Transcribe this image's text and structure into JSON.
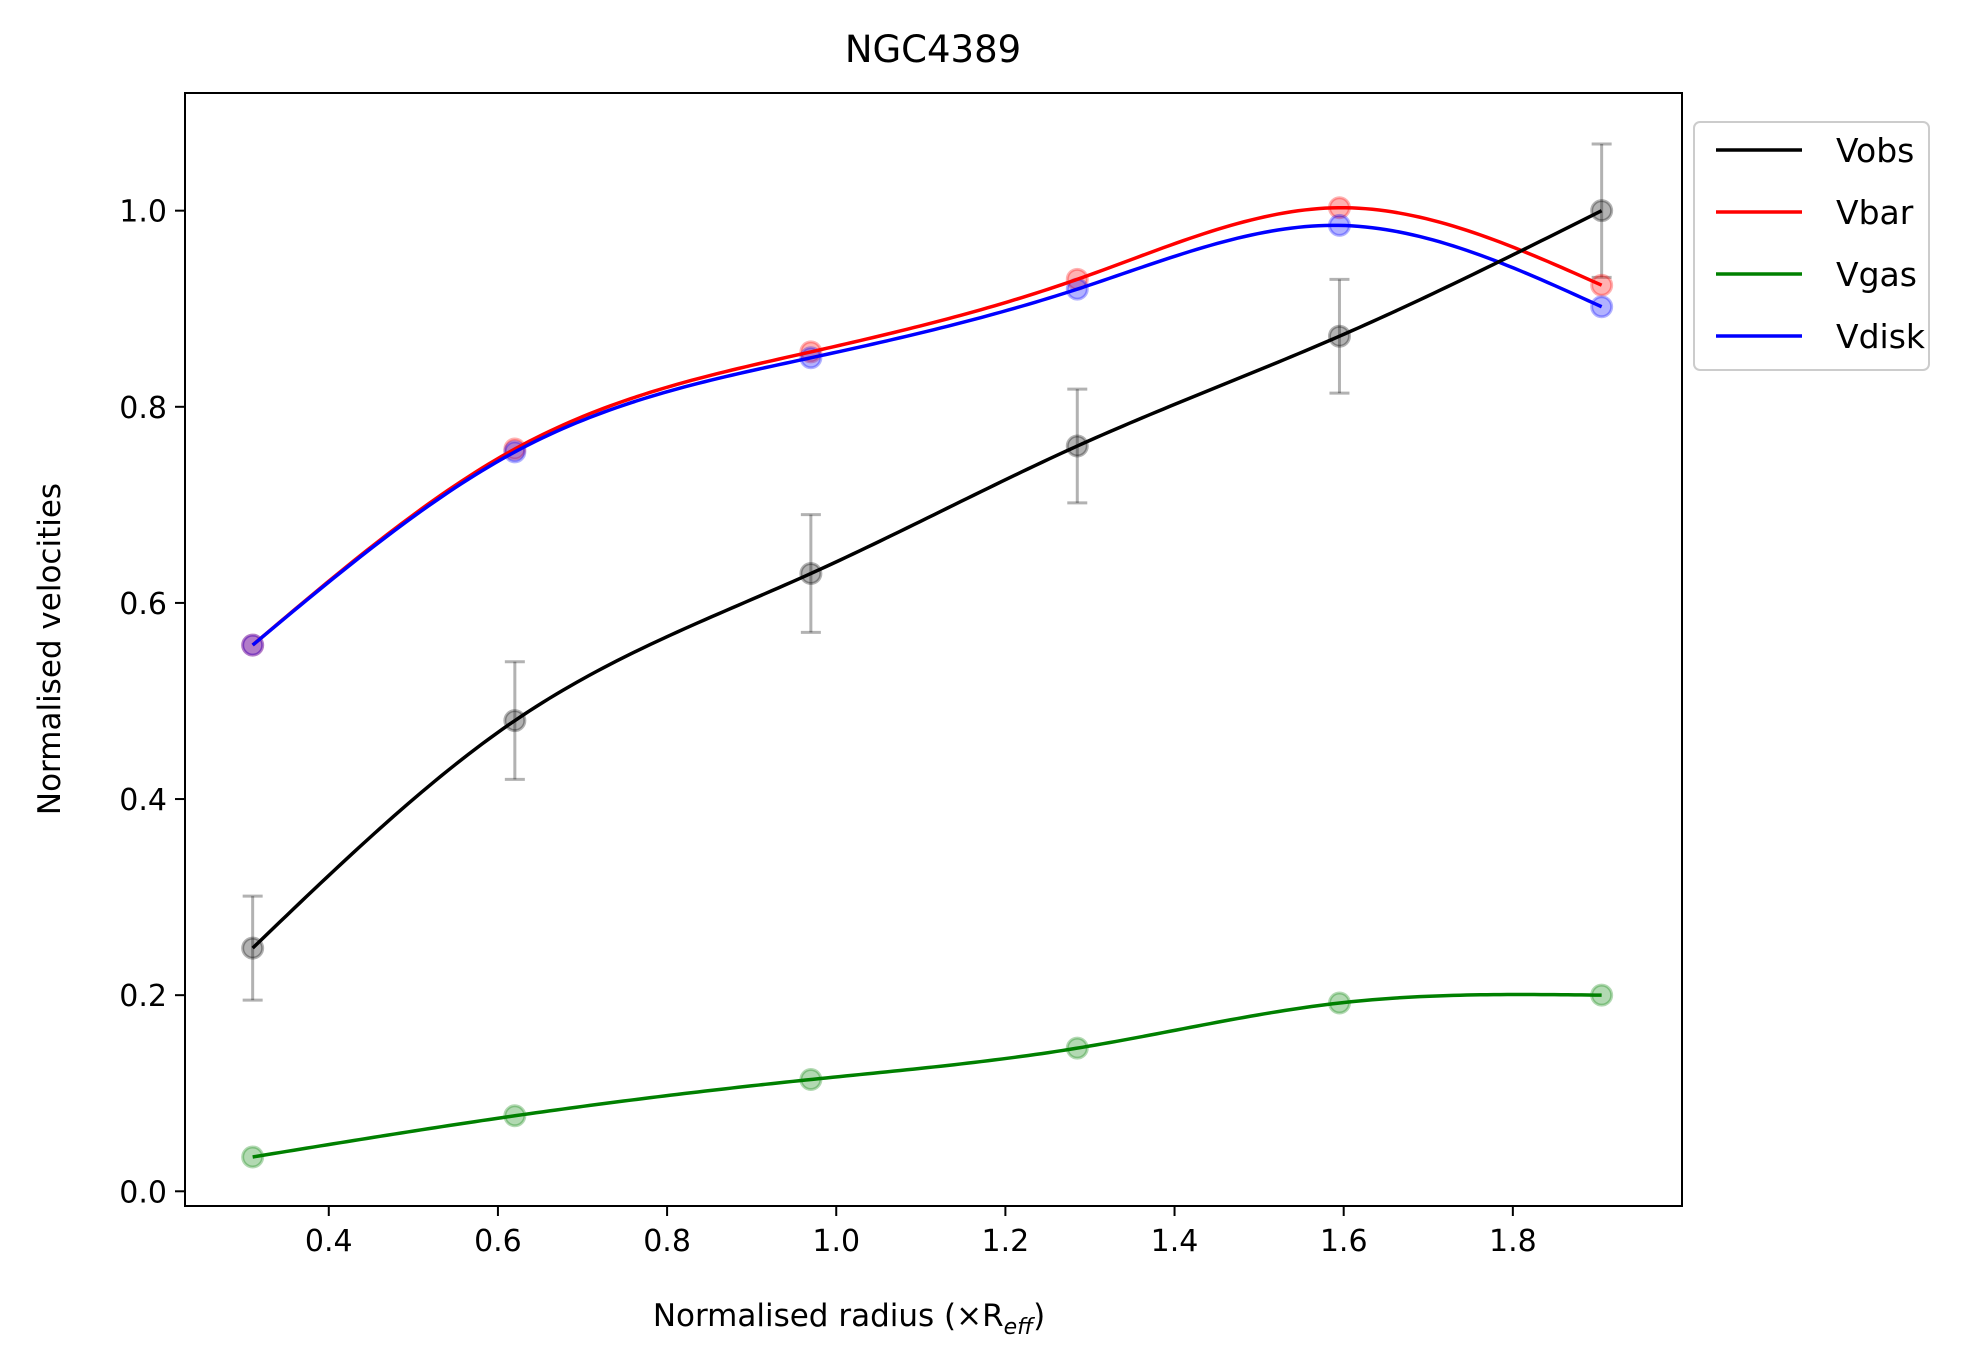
{
  "chart_data": {
    "type": "line",
    "title": "NGC4389",
    "xlabel": "Normalised radius (×R",
    "xlabel_sub": "eff",
    "xlabel_end": ")",
    "ylabel": "Normalised velocities",
    "xlim": [
      0.23,
      2.0
    ],
    "ylim": [
      -0.015,
      1.12
    ],
    "xticks": [
      0.4,
      0.6,
      0.8,
      1.0,
      1.2,
      1.4,
      1.6,
      1.8
    ],
    "xtick_labels": [
      "0.4",
      "0.6",
      "0.8",
      "1.0",
      "1.2",
      "1.4",
      "1.6",
      "1.8"
    ],
    "yticks": [
      0.0,
      0.2,
      0.4,
      0.6,
      0.8,
      1.0
    ],
    "ytick_labels": [
      "0.0",
      "0.2",
      "0.4",
      "0.6",
      "0.8",
      "1.0"
    ],
    "grid": false,
    "legend_position": "outside-top-right",
    "x": [
      0.31,
      0.62,
      0.97,
      1.285,
      1.595,
      1.905
    ],
    "series": [
      {
        "name": "Vobs",
        "color": "#000000",
        "values": [
          0.248,
          0.48,
          0.63,
          0.76,
          0.872,
          1.0
        ],
        "errors": [
          0.053,
          0.06,
          0.06,
          0.058,
          0.058,
          0.068
        ]
      },
      {
        "name": "Vbar",
        "color": "#ff0000",
        "values": [
          0.557,
          0.757,
          0.856,
          0.93,
          1.003,
          0.924
        ]
      },
      {
        "name": "Vgas",
        "color": "#008000",
        "values": [
          0.035,
          0.077,
          0.114,
          0.146,
          0.192,
          0.2
        ]
      },
      {
        "name": "Vdisk",
        "color": "#0000ff",
        "values": [
          0.557,
          0.754,
          0.85,
          0.92,
          0.985,
          0.902
        ]
      }
    ]
  }
}
